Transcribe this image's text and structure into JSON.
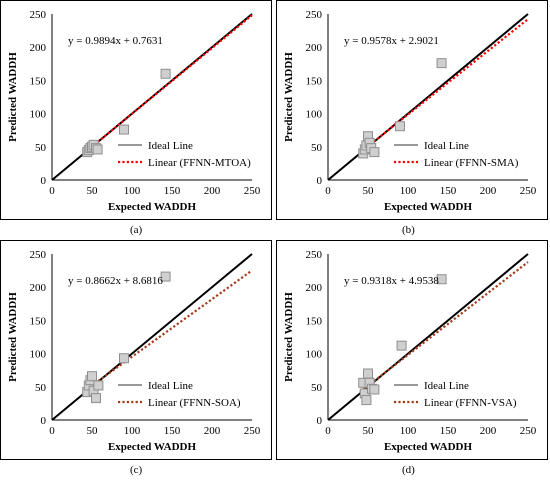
{
  "chart_data": [
    {
      "type": "scatter",
      "panel_label": "(a)",
      "xlabel": "Expected WADDH",
      "ylabel": "Predicted WADDH",
      "xlim": [
        0,
        250
      ],
      "ylim": [
        0,
        250
      ],
      "xticks": [
        0,
        50,
        100,
        150,
        200,
        250
      ],
      "yticks": [
        0,
        50,
        100,
        150,
        200,
        250
      ],
      "equation": "y = 0.9894x + 0.7631",
      "slope": 0.9894,
      "intercept": 0.7631,
      "trend_color": "#ff0000",
      "points": [
        [
          44,
          42
        ],
        [
          46,
          45
        ],
        [
          48,
          48
        ],
        [
          50,
          50
        ],
        [
          52,
          53
        ],
        [
          55,
          48
        ],
        [
          57,
          46
        ],
        [
          90,
          76
        ],
        [
          142,
          160
        ]
      ],
      "legend": [
        "Ideal Line",
        "Linear (FFNN-MTOA)"
      ]
    },
    {
      "type": "scatter",
      "panel_label": "(b)",
      "xlabel": "Expected WADDH",
      "ylabel": "Predicted WADDH",
      "xlim": [
        0,
        250
      ],
      "ylim": [
        0,
        250
      ],
      "xticks": [
        0,
        50,
        100,
        150,
        200,
        250
      ],
      "yticks": [
        0,
        50,
        100,
        150,
        200,
        250
      ],
      "equation": "y = 0.9578x + 2.9021",
      "slope": 0.9578,
      "intercept": 2.9021,
      "trend_color": "#ff0000",
      "points": [
        [
          44,
          40
        ],
        [
          46,
          46
        ],
        [
          48,
          52
        ],
        [
          50,
          66
        ],
        [
          52,
          56
        ],
        [
          54,
          48
        ],
        [
          58,
          42
        ],
        [
          90,
          81
        ],
        [
          142,
          176
        ]
      ],
      "legend": [
        "Ideal Line",
        "Linear (FFNN-SMA)"
      ]
    },
    {
      "type": "scatter",
      "panel_label": "(c)",
      "xlabel": "Expected WADDH",
      "ylabel": "Predicted WADDH",
      "xlim": [
        0,
        250
      ],
      "ylim": [
        0,
        250
      ],
      "xticks": [
        0,
        50,
        100,
        150,
        200,
        250
      ],
      "yticks": [
        0,
        50,
        100,
        150,
        200,
        250
      ],
      "equation": "y = 0.8662x + 8.6816",
      "slope": 0.8662,
      "intercept": 8.6816,
      "trend_color": "#a33a1a",
      "points": [
        [
          44,
          42
        ],
        [
          46,
          52
        ],
        [
          48,
          60
        ],
        [
          50,
          66
        ],
        [
          52,
          44
        ],
        [
          55,
          33
        ],
        [
          58,
          52
        ],
        [
          90,
          93
        ],
        [
          142,
          216
        ]
      ],
      "legend": [
        "Ideal Line",
        "Linear (FFNN-SOA)"
      ]
    },
    {
      "type": "scatter",
      "panel_label": "(d)",
      "xlabel": "Expected WADDH",
      "ylabel": "Predicted WADDH",
      "xlim": [
        0,
        250
      ],
      "ylim": [
        0,
        250
      ],
      "xticks": [
        0,
        50,
        100,
        150,
        200,
        250
      ],
      "yticks": [
        0,
        50,
        100,
        150,
        200,
        250
      ],
      "equation": "y = 0.9318x + 4.9538",
      "slope": 0.9318,
      "intercept": 4.9538,
      "trend_color": "#a33a1a",
      "points": [
        [
          44,
          56
        ],
        [
          46,
          40
        ],
        [
          48,
          30
        ],
        [
          50,
          70
        ],
        [
          52,
          56
        ],
        [
          55,
          47
        ],
        [
          58,
          46
        ],
        [
          92,
          112
        ],
        [
          142,
          212
        ]
      ],
      "legend": [
        "Ideal Line",
        "Linear (FFNN-VSA)"
      ]
    }
  ],
  "ideal_color": "#000000",
  "marker_fill": "#cfcfcf",
  "marker_stroke": "#8f8f8f",
  "legend_ideal_swatch": "#9a9a9a"
}
